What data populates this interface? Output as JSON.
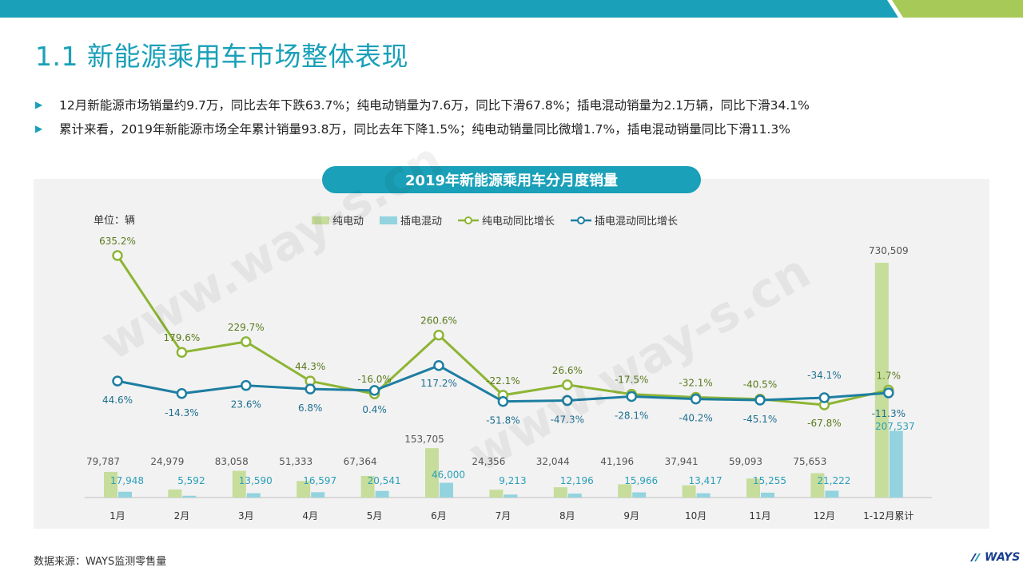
{
  "page": {
    "title": "1.1 新能源乘用车市场整体表现",
    "bullets": [
      "12月新能源市场销量约9.7万，同比去年下跌63.7%；纯电动销量为7.6万，同比下滑67.8%；插电混动销量为2.1万辆，同比下滑34.1%",
      "累计来看，2019年新能源市场全年累计销量93.8万，同比去年下降1.5%；纯电动销量同比微增1.7%，插电混动销量同比下滑11.3%"
    ],
    "chart_title": "2019年新能源乘用车分月度销量",
    "unit_label": "单位：辆",
    "source": "数据来源：WAYS监测零售量",
    "logo_text": "WAYS",
    "watermark": "www.way-s.cn",
    "colors": {
      "accent": "#1aa0b8",
      "bev_bar": "#c6dd9c",
      "phev_bar": "#93d3df",
      "bev_line": "#8db534",
      "phev_line": "#1d7ea1",
      "top_green": "#a7c957"
    }
  },
  "chart_data": {
    "type": "bar",
    "categories": [
      "1月",
      "2月",
      "3月",
      "4月",
      "5月",
      "6月",
      "7月",
      "8月",
      "9月",
      "10月",
      "11月",
      "12月",
      "1-12月累计"
    ],
    "series": [
      {
        "name": "纯电动",
        "kind": "bar",
        "values": [
          79787,
          24979,
          83058,
          51333,
          67364,
          153705,
          24356,
          32044,
          41196,
          37941,
          59093,
          75653,
          730509
        ],
        "labels": [
          "79,787",
          "24,979",
          "83,058",
          "51,333",
          "67,364",
          "153,705",
          "24,356",
          "32,044",
          "41,196",
          "37,941",
          "59,093",
          "75,653",
          "730,509"
        ]
      },
      {
        "name": "插电混动",
        "kind": "bar",
        "values": [
          17948,
          5592,
          13590,
          16597,
          20541,
          46000,
          9213,
          12196,
          15966,
          13417,
          15255,
          21222,
          207537
        ],
        "labels": [
          "17,948",
          "5,592",
          "13,590",
          "16,597",
          "20,541",
          "46,000",
          "9,213",
          "12,196",
          "15,966",
          "13,417",
          "15,255",
          "21,222",
          "207,537"
        ]
      },
      {
        "name": "纯电动同比增长",
        "kind": "line",
        "values": [
          635.2,
          179.6,
          229.7,
          44.3,
          -16.0,
          260.6,
          -22.1,
          26.6,
          -17.5,
          -32.1,
          -40.5,
          -67.8,
          1.7
        ],
        "labels": [
          "635.2%",
          "179.6%",
          "229.7%",
          "44.3%",
          "-16.0%",
          "260.6%",
          "-22.1%",
          "26.6%",
          "-17.5%",
          "-32.1%",
          "-40.5%",
          "-67.8%",
          "1.7%"
        ]
      },
      {
        "name": "插电混动同比增长",
        "kind": "line",
        "values": [
          44.6,
          -14.3,
          23.6,
          6.8,
          0.4,
          117.2,
          -51.8,
          -47.3,
          -28.1,
          -40.2,
          -45.1,
          -34.1,
          -11.3
        ],
        "labels": [
          "44.6%",
          "-14.3%",
          "23.6%",
          "6.8%",
          "0.4%",
          "117.2%",
          "-51.8%",
          "-47.3%",
          "-28.1%",
          "-40.2%",
          "-45.1%",
          "-34.1%",
          "-11.3%"
        ]
      }
    ],
    "bar_axis_range": [
      0,
      730509
    ],
    "line_axis_range": [
      -67.8,
      635.2
    ],
    "legend_position": "top",
    "grid": false
  }
}
